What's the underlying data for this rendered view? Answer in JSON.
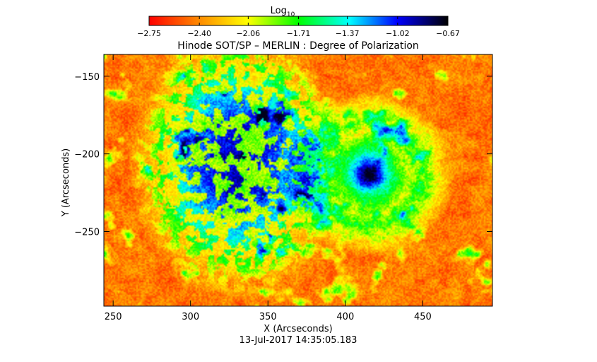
{
  "colorbar": {
    "label": "Log",
    "label_subscript": "10",
    "ticks": [
      -2.75,
      -2.4,
      -2.06,
      -1.71,
      -1.37,
      -1.02,
      -0.67
    ],
    "tick_labels": [
      "−2.75",
      "−2.40",
      "−2.06",
      "−1.71",
      "−1.37",
      "−1.02",
      "−0.67"
    ],
    "range": [
      -2.75,
      -0.67
    ],
    "colors": [
      "#ff0000",
      "#ff8c00",
      "#ffff00",
      "#00ff00",
      "#00ffff",
      "#0000ff",
      "#000000"
    ]
  },
  "chart_data": {
    "type": "heatmap",
    "title": "Hinode SOT/SP – MERLIN : Degree of Polarization",
    "xlabel": "X (Arcseconds)",
    "ylabel": "Y (Arcseconds)",
    "xlim": [
      244,
      495
    ],
    "ylim": [
      -298,
      -136
    ],
    "xticks": [
      250,
      300,
      350,
      400,
      450
    ],
    "yticks": [
      -150,
      -200,
      -250
    ],
    "value_range": [
      -2.75,
      -0.67
    ],
    "grid": false,
    "features": [
      {
        "kind": "sunspot",
        "x": 415,
        "y": -213,
        "peak_value": -0.75
      },
      {
        "kind": "plage",
        "x": 330,
        "y": -205,
        "peak_value": -1.1
      }
    ]
  },
  "timestamp": "13-Jul-2017 14:35:05.183"
}
